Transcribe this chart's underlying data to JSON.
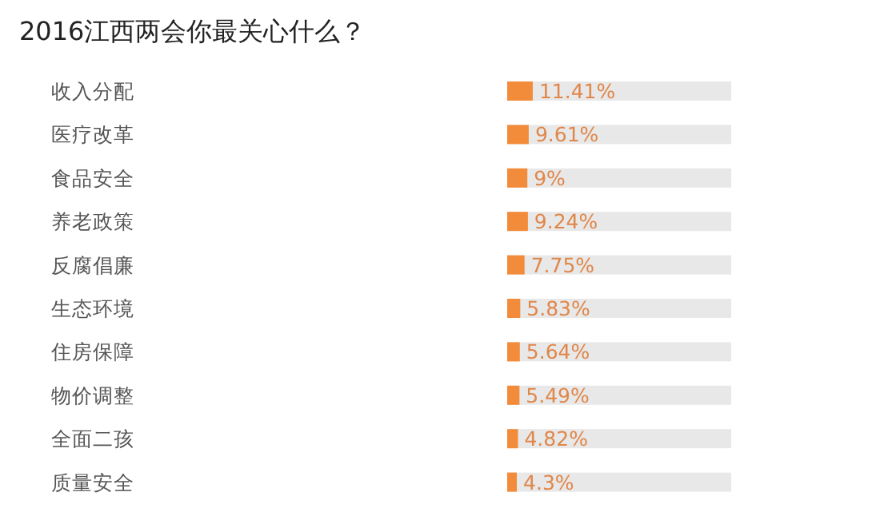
{
  "chart_data": {
    "type": "bar",
    "orientation": "horizontal",
    "title": "2016江西两会你最关心什么？",
    "categories": [
      "收入分配",
      "医疗改革",
      "食品安全",
      "养老政策",
      "反腐倡廉",
      "生态环境",
      "住房保障",
      "物价调整",
      "全面二孩",
      "质量安全"
    ],
    "values": [
      11.41,
      9.61,
      9,
      9.24,
      7.75,
      5.83,
      5.64,
      5.49,
      4.82,
      4.3
    ],
    "value_labels": [
      "11.41%",
      "9.61%",
      "9%",
      "9.24%",
      "7.75%",
      "5.83%",
      "5.64%",
      "5.49%",
      "4.82%",
      "4.3%"
    ],
    "color": "#f28c3a"
  }
}
